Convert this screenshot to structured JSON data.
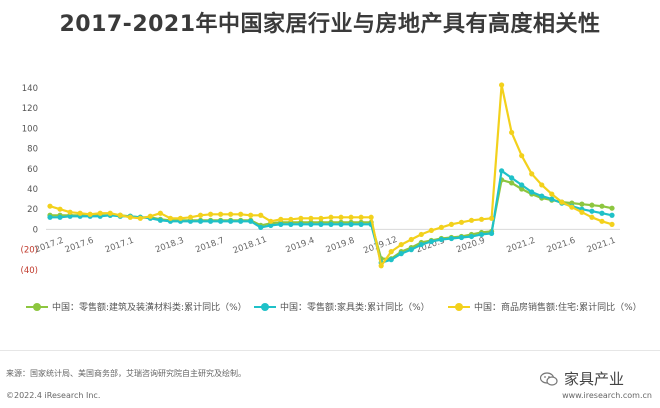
{
  "title": "2017-2021年中国家居行业与房地产具有高度相关性",
  "chart_data": {
    "type": "line",
    "x": [
      "2017.2",
      "2017.4",
      "2017.5",
      "2017.6",
      "2017.7",
      "2017.8",
      "2017.9",
      "2017.10",
      "2017.11",
      "2017.12",
      "2018.1",
      "2018.2",
      "2018.3",
      "2018.4",
      "2018.5",
      "2018.6",
      "2018.7",
      "2018.8",
      "2018.9",
      "2018.10",
      "2018.11",
      "2018.12",
      "2019.1",
      "2019.2",
      "2019.3",
      "2019.4",
      "2019.5",
      "2019.6",
      "2019.7",
      "2019.8",
      "2019.9",
      "2019.10",
      "2019.11",
      "2019.12",
      "2020.1",
      "2020.2",
      "2020.3",
      "2020.4",
      "2020.5",
      "2020.6",
      "2020.7",
      "2020.8",
      "2020.9",
      "2020.10",
      "2020.11",
      "2020.12",
      "2021.1",
      "2021.2",
      "2021.3",
      "2021.4",
      "2021.5",
      "2021.6",
      "2021.7",
      "2021.8",
      "2021.9",
      "2021.10",
      "2021.11"
    ],
    "x_ticks": [
      "2017.2",
      "2017.6",
      "2017.1",
      "2018.3",
      "2018.7",
      "2018.11",
      "2019.4",
      "2019.8",
      "2019.12",
      "2020.5",
      "2020.9",
      "2021.2",
      "2021.6",
      "2021.1"
    ],
    "x_tick_positions": [
      "2017.2",
      "2017.6",
      "2017.10",
      "2018.3",
      "2018.7",
      "2018.11",
      "2019.4",
      "2019.8",
      "2019.12",
      "2020.5",
      "2020.9",
      "2021.2",
      "2021.6",
      "2021.10"
    ],
    "y_ticks": [
      140,
      120,
      100,
      80,
      60,
      40,
      20,
      0,
      -20,
      -40
    ],
    "y_tick_labels": [
      "140",
      "120",
      "100",
      "80",
      "60",
      "40",
      "20",
      "0",
      "(20)",
      "(40)"
    ],
    "ylim": [
      -40,
      150
    ],
    "grid": false,
    "legend_position": "bottom",
    "series": [
      {
        "name": "中国：零售额:建筑及装潢材料类:累计同比（%）",
        "color": "#8dc63f",
        "values": [
          14,
          14,
          14,
          14,
          14,
          14,
          14,
          14,
          13,
          12,
          12,
          10,
          9,
          9,
          9,
          9,
          9,
          9,
          9,
          9,
          9,
          4,
          6,
          7,
          7,
          7,
          7,
          7,
          7,
          7,
          7,
          7,
          7,
          -29,
          -29,
          -22,
          -18,
          -13,
          -11,
          -9,
          -8,
          -7,
          -5,
          -3,
          -2,
          49,
          46,
          40,
          35,
          31,
          29,
          27,
          26,
          25,
          24,
          23,
          21
        ]
      },
      {
        "name": "中国：零售额:家具类:累计同比（%）",
        "color": "#1fc1c8",
        "values": [
          12,
          12,
          13,
          13,
          13,
          13,
          14,
          13,
          13,
          12,
          11,
          9,
          8,
          8,
          8,
          8,
          8,
          8,
          8,
          8,
          8,
          2,
          4,
          5,
          5,
          5,
          5,
          5,
          5,
          5,
          5,
          5,
          5,
          -33,
          -30,
          -24,
          -20,
          -15,
          -12,
          -10,
          -9,
          -8,
          -7,
          -5,
          -4,
          58,
          51,
          44,
          37,
          33,
          30,
          26,
          23,
          20,
          18,
          16,
          14
        ]
      },
      {
        "name": "中国：商品房销售额:住宅:累计同比（%）",
        "color": "#f3d11c",
        "values": [
          23,
          20,
          17,
          16,
          15,
          16,
          16,
          14,
          12,
          11,
          13,
          16,
          11,
          11,
          12,
          14,
          15,
          15,
          15,
          15,
          14,
          14,
          8,
          10,
          10,
          11,
          11,
          11,
          12,
          12,
          12,
          12,
          12,
          -36,
          -22,
          -15,
          -10,
          -5,
          -1,
          2,
          5,
          7,
          9,
          10,
          11,
          143,
          96,
          73,
          55,
          44,
          35,
          27,
          22,
          17,
          12,
          8,
          5
        ]
      }
    ]
  },
  "legend_items": [
    "中国：零售额:建筑及装潢材料类:累计同比（%）",
    "中国：零售额:家具类:累计同比（%）",
    "中国：商品房销售额:住宅:累计同比（%）"
  ],
  "footer": {
    "source": "来源：国家统计局、美国商务部，艾瑞咨询研究院自主研究及绘制。",
    "copyright": "©2022.4 iResearch Inc.",
    "website": "www.iresearch.com.cn",
    "watermark": "家具产业",
    "watermark_icon": "wechat-icon"
  }
}
